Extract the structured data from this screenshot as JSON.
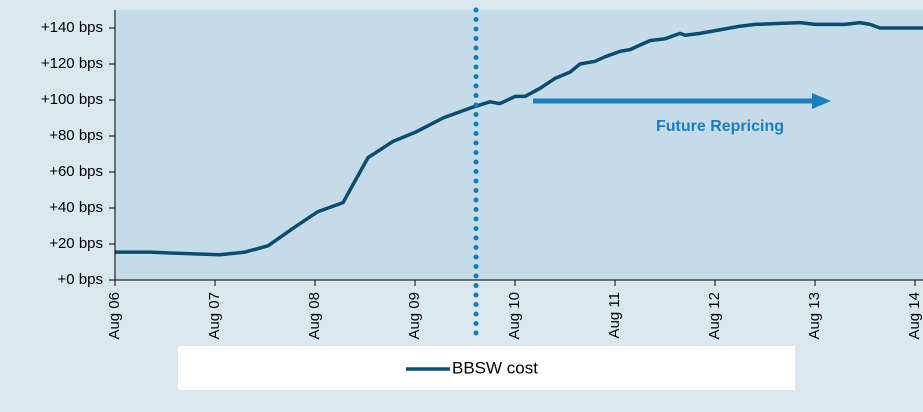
{
  "chart_data": {
    "type": "line",
    "x": [
      2006.58,
      2006.93,
      2007.13,
      2007.38,
      2007.63,
      2007.88,
      2008.11,
      2008.38,
      2008.61,
      2008.86,
      2009.11,
      2009.36,
      2009.58,
      2009.86,
      2010.13,
      2010.33,
      2010.43,
      2010.58,
      2010.68,
      2010.83,
      2010.98,
      2011.13,
      2011.23,
      2011.38,
      2011.48,
      2011.63,
      2011.73,
      2011.93,
      2012.08,
      2012.23,
      2012.28,
      2012.43,
      2012.73,
      2012.83,
      2012.98,
      2013.43,
      2013.58,
      2013.88,
      2014.03,
      2014.13,
      2014.23,
      2014.66
    ],
    "series": [
      {
        "name": "BBSW cost",
        "color": "#0b4d70",
        "values": [
          15.5,
          15.5,
          15,
          14.5,
          14,
          15.5,
          19,
          29.5,
          38,
          43,
          68,
          77,
          82,
          90,
          95.5,
          99,
          98,
          102,
          102,
          106.5,
          112,
          115.5,
          120,
          121.5,
          124,
          127,
          128,
          133,
          134,
          137,
          136,
          137,
          140,
          141,
          142,
          143,
          142,
          142,
          143,
          142,
          140,
          140
        ]
      }
    ],
    "xlim": [
      2006.58,
      2014.66
    ],
    "xticks": [
      {
        "value": 2006.58,
        "label": "Aug 06"
      },
      {
        "value": 2007.58,
        "label": "Aug 07"
      },
      {
        "value": 2008.58,
        "label": "Aug 08"
      },
      {
        "value": 2009.58,
        "label": "Aug 09"
      },
      {
        "value": 2010.58,
        "label": "Aug 10"
      },
      {
        "value": 2011.58,
        "label": "Aug 11"
      },
      {
        "value": 2012.58,
        "label": "Aug 12"
      },
      {
        "value": 2013.58,
        "label": "Aug 13"
      },
      {
        "value": 2014.58,
        "label": "Aug 14"
      }
    ],
    "ylim": [
      0,
      150
    ],
    "yticks": [
      {
        "value": 0,
        "label": "+0 bps"
      },
      {
        "value": 20,
        "label": "+20 bps"
      },
      {
        "value": 40,
        "label": "+40 bps"
      },
      {
        "value": 60,
        "label": "+60 bps"
      },
      {
        "value": 80,
        "label": "+80 bps"
      },
      {
        "value": 100,
        "label": "+100 bps"
      },
      {
        "value": 120,
        "label": "+120 bps"
      },
      {
        "value": 140,
        "label": "+140 bps"
      }
    ],
    "annotation": "Future Repricing"
  }
}
